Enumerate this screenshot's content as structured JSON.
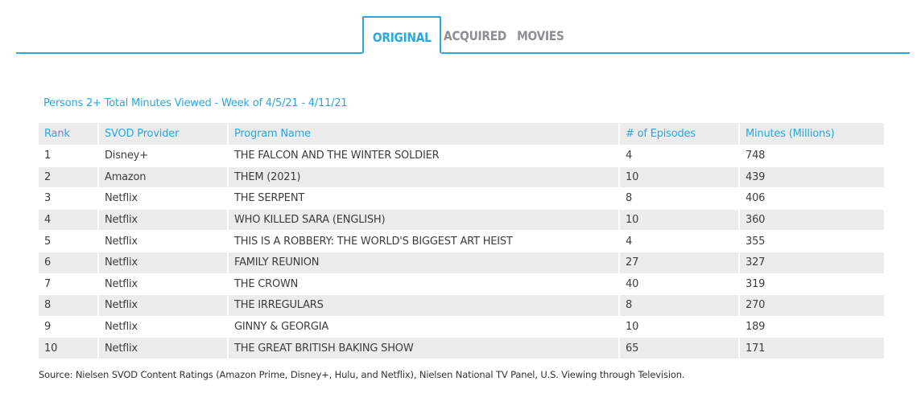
{
  "tabs": [
    {
      "label": "ORIGINAL",
      "active": true
    },
    {
      "label": "ACQUIRED",
      "active": false
    },
    {
      "label": "MOVIES",
      "active": false
    }
  ],
  "colors": {
    "accent": "#29a8dc",
    "row_alt": "#ececec",
    "text": "#3d3d3d",
    "tab_inactive": "#8b8f92"
  },
  "table": {
    "caption": "Persons 2+ Total Minutes Viewed - Week of 4/5/21 - 4/11/21",
    "headers": [
      "Rank",
      "SVOD Provider",
      "Program Name",
      "# of Episodes",
      "Minutes (Millions)"
    ],
    "rows": [
      [
        "1",
        "Disney+",
        "THE FALCON AND THE WINTER SOLDIER",
        "4",
        "748"
      ],
      [
        "2",
        "Amazon",
        "THEM (2021)",
        "10",
        "439"
      ],
      [
        "3",
        "Netflix",
        "THE SERPENT",
        "8",
        "406"
      ],
      [
        "4",
        "Netflix",
        "WHO KILLED SARA (ENGLISH)",
        "10",
        "360"
      ],
      [
        "5",
        "Netflix",
        "THIS IS A ROBBERY: THE WORLD'S BIGGEST ART HEIST",
        "4",
        "355"
      ],
      [
        "6",
        "Netflix",
        "FAMILY REUNION",
        "27",
        "327"
      ],
      [
        "7",
        "Netflix",
        "THE CROWN",
        "40",
        "319"
      ],
      [
        "8",
        "Netflix",
        "THE IRREGULARS",
        "8",
        "270"
      ],
      [
        "9",
        "Netflix",
        "GINNY & GEORGIA",
        "10",
        "189"
      ],
      [
        "10",
        "Netflix",
        "THE GREAT BRITISH BAKING SHOW",
        "65",
        "171"
      ]
    ]
  },
  "footer": {
    "source": "Source: Nielsen SVOD Content Ratings (Amazon Prime, Disney+, Hulu, and Netflix), Nielsen National TV Panel, U.S. Viewing through Television."
  }
}
